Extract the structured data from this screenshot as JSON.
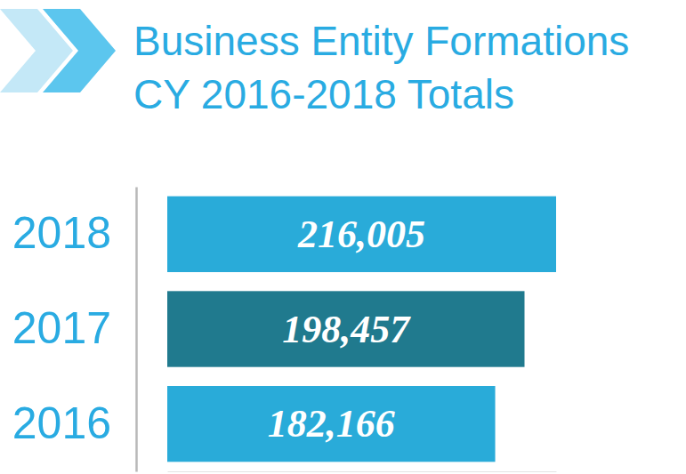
{
  "chart_data": {
    "type": "bar",
    "orientation": "horizontal",
    "title": "Business Entity Formations",
    "subtitle": "CY 2016-2018 Totals",
    "categories": [
      "2018",
      "2017",
      "2016"
    ],
    "values": [
      216005,
      198457,
      182166
    ],
    "value_labels": [
      "216,005",
      "198,457",
      "182,166"
    ],
    "colors": [
      "#29abd9",
      "#207a8e",
      "#29abd9"
    ],
    "xlim": [
      0,
      216005
    ],
    "xticks": [],
    "data_labels": true,
    "tick_labels": "y",
    "grid": false
  }
}
